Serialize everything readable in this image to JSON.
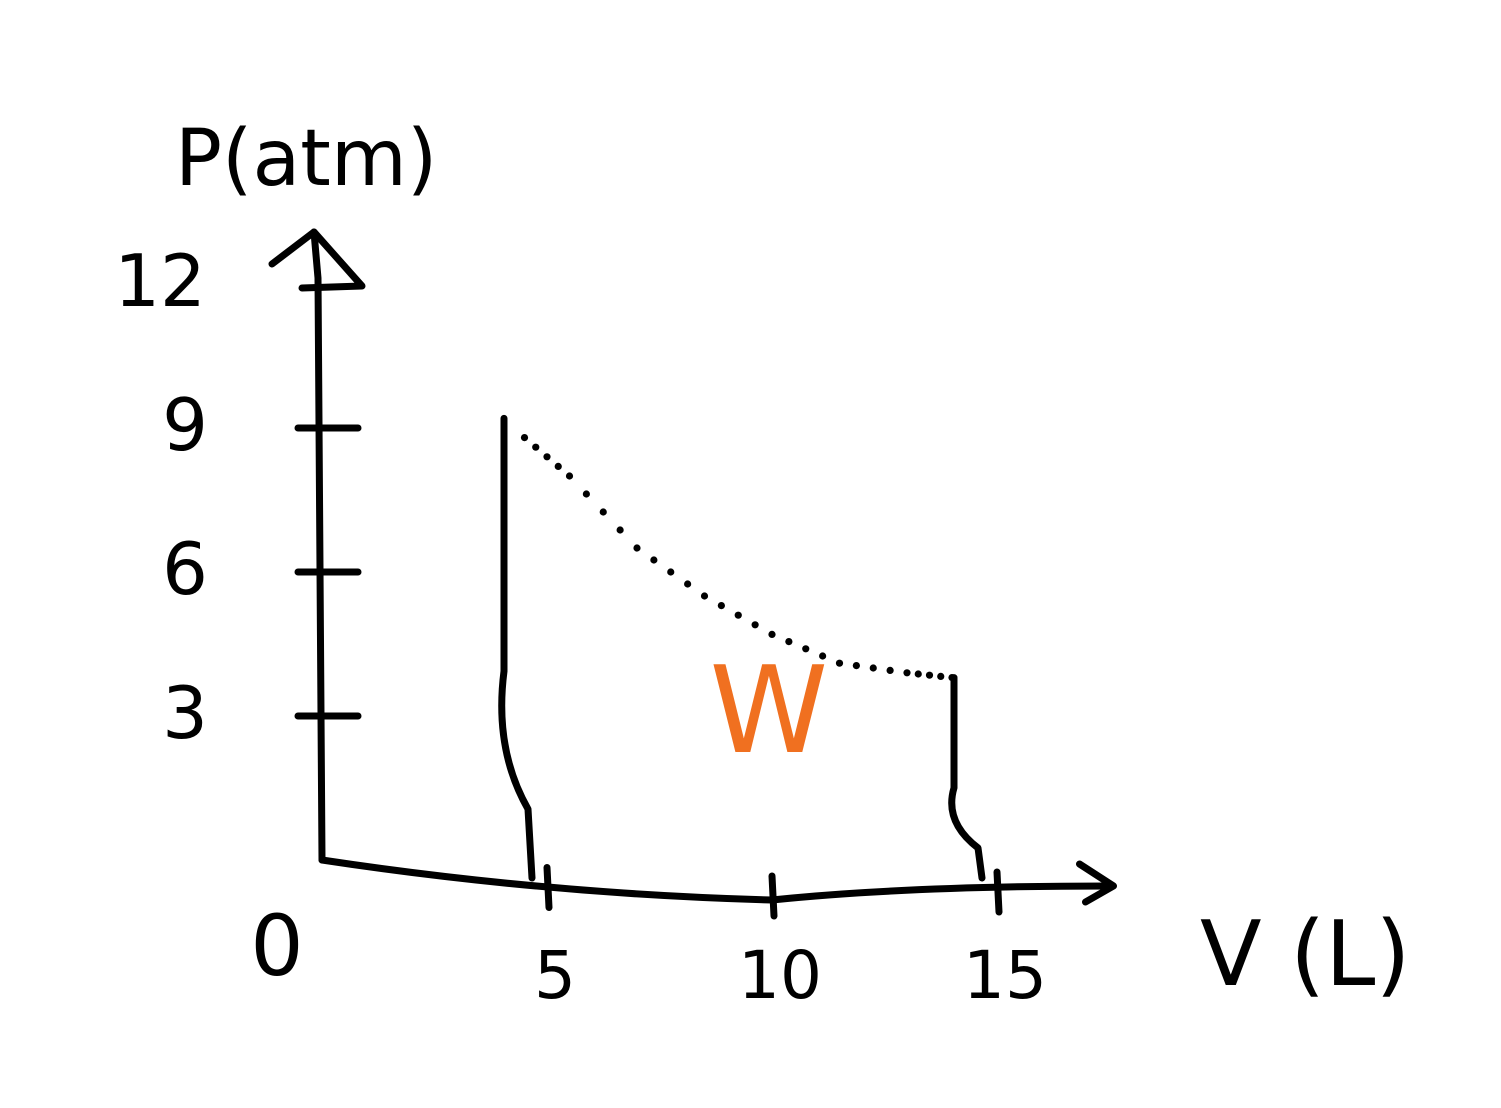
{
  "chart_data": {
    "type": "line",
    "title": "",
    "xlabel": "V (L)",
    "ylabel": "P(atm)",
    "xlim": [
      0,
      18
    ],
    "ylim": [
      0,
      12
    ],
    "x_ticks": [
      {
        "value": 0,
        "label": "0"
      },
      {
        "value": 5,
        "label": "5"
      },
      {
        "value": 10,
        "label": "10"
      },
      {
        "value": 15,
        "label": "15"
      }
    ],
    "y_ticks": [
      {
        "value": 3,
        "label": "3"
      },
      {
        "value": 6,
        "label": "6"
      },
      {
        "value": 9,
        "label": "9"
      },
      {
        "value": 12,
        "label": "12"
      }
    ],
    "boundary_lines": [
      {
        "x": 4,
        "y_from": 0,
        "y_to": 9.2,
        "style": "solid"
      },
      {
        "x": 14,
        "y_from": 0,
        "y_to": 3.8,
        "style": "solid"
      }
    ],
    "curve": {
      "style": "dotted",
      "points": [
        {
          "x": 4.5,
          "y": 8.8
        },
        {
          "x": 5.5,
          "y": 8.0
        },
        {
          "x": 7,
          "y": 6.5
        },
        {
          "x": 8.5,
          "y": 5.5
        },
        {
          "x": 10,
          "y": 4.7
        },
        {
          "x": 11.5,
          "y": 4.1
        },
        {
          "x": 13,
          "y": 3.9
        },
        {
          "x": 14,
          "y": 3.8
        }
      ]
    },
    "area_label": {
      "text": "W",
      "x": 9.5,
      "y": 3.0,
      "color": "#f07020"
    },
    "colors": {
      "ink": "#000000",
      "area_label": "#f07020"
    },
    "grid": false,
    "legend": "none"
  }
}
